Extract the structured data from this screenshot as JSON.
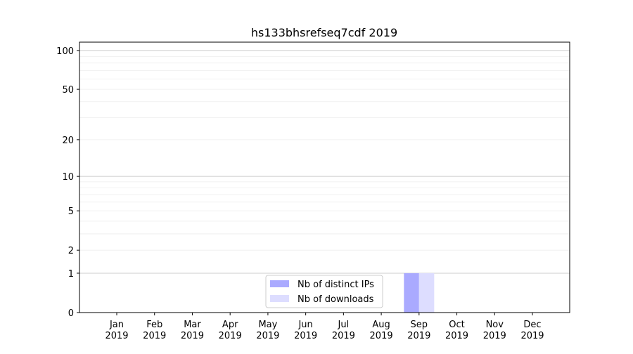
{
  "chart_data": {
    "type": "bar",
    "title": "hs133bhsrefseq7cdf 2019",
    "y_scale": "log10(y+1)",
    "ylim": [
      0,
      116
    ],
    "yticks": [
      0,
      1,
      2,
      5,
      10,
      20,
      50,
      100
    ],
    "grid": true,
    "legend_position": "lower-center",
    "categories": [
      "Jan\n2019",
      "Feb\n2019",
      "Mar\n2019",
      "Apr\n2019",
      "May\n2019",
      "Jun\n2019",
      "Jul\n2019",
      "Aug\n2019",
      "Sep\n2019",
      "Oct\n2019",
      "Nov\n2019",
      "Dec\n2019"
    ],
    "series": [
      {
        "name": "Nb of distinct IPs",
        "color": "#aaaaff",
        "values": [
          0,
          0,
          0,
          0,
          0,
          0,
          0,
          0,
          1,
          0,
          0,
          0
        ]
      },
      {
        "name": "Nb of downloads",
        "color": "#ddddff",
        "values": [
          0,
          0,
          0,
          0,
          0,
          0,
          0,
          0,
          1,
          0,
          0,
          0
        ]
      }
    ]
  }
}
